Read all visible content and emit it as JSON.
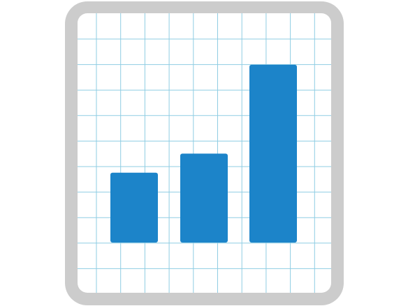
{
  "icon": {
    "name": "bar-chart-icon",
    "frame_color": "#cccccc",
    "paper_color": "#ffffff",
    "grid_color": "#8fcde3",
    "bar_color": "#1c84c9"
  },
  "chart_data": {
    "type": "bar",
    "categories": [
      "",
      "",
      ""
    ],
    "values": [
      5.5,
      7,
      14
    ],
    "ylim": [
      0,
      18
    ],
    "grid": true
  }
}
